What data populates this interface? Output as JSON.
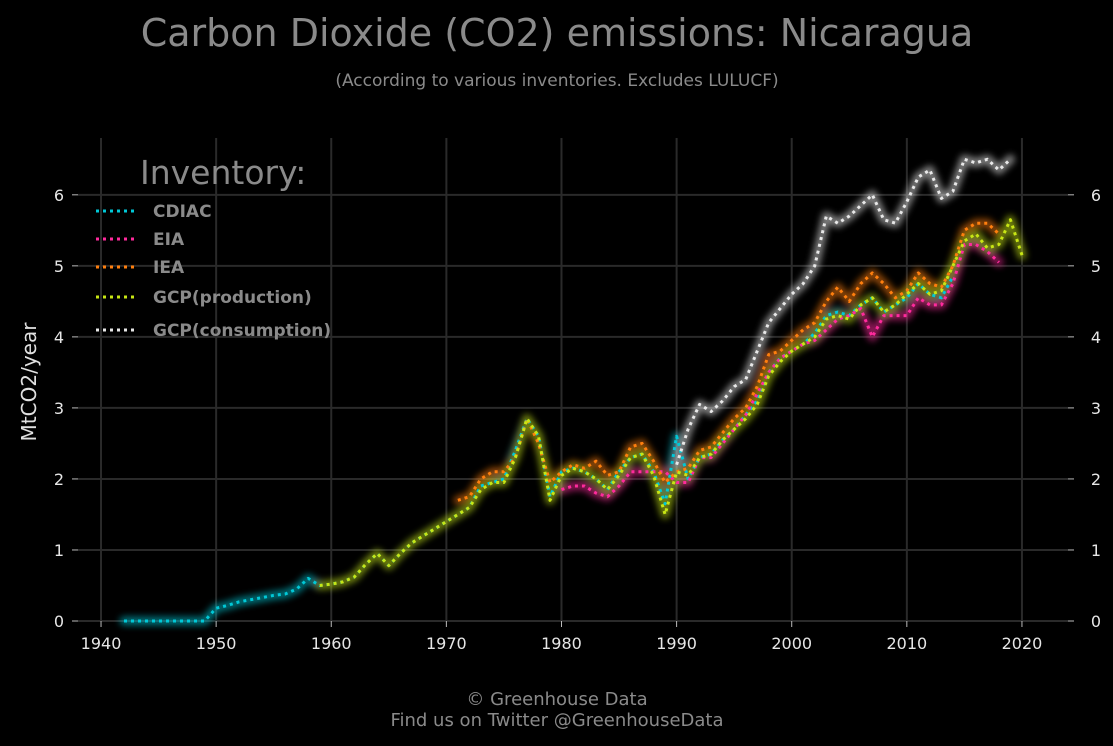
{
  "chart_data": {
    "type": "line",
    "title": "Carbon Dioxide (CO2) emissions: Nicaragua",
    "subtitle": "(According to various inventories. Excludes LULUCF)",
    "ylabel": "MtCO2/year",
    "xlabel": "",
    "xlim": [
      1938,
      2024
    ],
    "ylim": [
      0,
      6.8
    ],
    "x_ticks": [
      1940,
      1950,
      1960,
      1970,
      1980,
      1990,
      2000,
      2010,
      2020
    ],
    "y_ticks": [
      0,
      1,
      2,
      3,
      4,
      5,
      6
    ],
    "grid": true,
    "legend_title": "Inventory:",
    "legend_position": "top-left",
    "series": [
      {
        "name": "CDIAC",
        "color": "#00c8d7",
        "x": [
          1942,
          1943,
          1944,
          1945,
          1946,
          1947,
          1948,
          1949,
          1950,
          1951,
          1952,
          1953,
          1954,
          1955,
          1956,
          1957,
          1958,
          1959,
          1960,
          1961,
          1962,
          1963,
          1964,
          1965,
          1966,
          1967,
          1968,
          1969,
          1970,
          1971,
          1972,
          1973,
          1974,
          1975,
          1976,
          1977,
          1978,
          1979,
          1980,
          1981,
          1982,
          1983,
          1984,
          1985,
          1986,
          1987,
          1988,
          1989,
          1990,
          1991,
          1992,
          1993,
          1994,
          1995,
          1996,
          1997,
          1998,
          1999,
          2000,
          2001,
          2002,
          2003,
          2004,
          2005,
          2006,
          2007,
          2008,
          2009,
          2010,
          2011,
          2012,
          2013,
          2014
        ],
        "y": [
          0,
          0,
          0,
          0,
          0,
          0,
          0,
          0,
          0.18,
          0.22,
          0.27,
          0.3,
          0.33,
          0.36,
          0.38,
          0.45,
          0.6,
          0.5,
          0.52,
          0.55,
          0.62,
          0.8,
          0.95,
          0.78,
          0.95,
          1.1,
          1.2,
          1.3,
          1.4,
          1.5,
          1.6,
          1.9,
          1.95,
          2.0,
          2.4,
          2.85,
          2.6,
          1.75,
          2.1,
          2.15,
          2.1,
          2.0,
          1.85,
          2.1,
          2.3,
          2.35,
          2.1,
          1.65,
          2.6,
          2.0,
          2.3,
          2.35,
          2.55,
          2.7,
          2.9,
          3.1,
          3.5,
          3.7,
          3.8,
          3.9,
          4.05,
          4.3,
          4.35,
          4.3,
          4.45,
          4.55,
          4.35,
          4.45,
          4.55,
          4.75,
          4.6,
          4.55,
          4.85
        ]
      },
      {
        "name": "EIA",
        "color": "#ff2a9d",
        "x": [
          1980,
          1981,
          1982,
          1983,
          1984,
          1985,
          1986,
          1987,
          1988,
          1989,
          1990,
          1991,
          1992,
          1993,
          1994,
          1995,
          1996,
          1997,
          1998,
          1999,
          2000,
          2001,
          2002,
          2003,
          2004,
          2005,
          2006,
          2007,
          2008,
          2009,
          2010,
          2011,
          2012,
          2013,
          2014,
          2015,
          2016,
          2017,
          2018
        ],
        "y": [
          1.85,
          1.9,
          1.9,
          1.8,
          1.75,
          1.9,
          2.1,
          2.1,
          2.1,
          2.1,
          1.95,
          1.95,
          2.3,
          2.3,
          2.5,
          2.7,
          2.9,
          3.2,
          3.5,
          3.7,
          3.8,
          3.9,
          3.95,
          4.1,
          4.25,
          4.3,
          4.4,
          4.0,
          4.3,
          4.3,
          4.3,
          4.55,
          4.45,
          4.45,
          4.75,
          5.3,
          5.3,
          5.2,
          5.05
        ]
      },
      {
        "name": "IEA",
        "color": "#ff7f0e",
        "x": [
          1971,
          1972,
          1973,
          1974,
          1975,
          1976,
          1977,
          1978,
          1979,
          1980,
          1981,
          1982,
          1983,
          1984,
          1985,
          1986,
          1987,
          1988,
          1989,
          1990,
          1991,
          1992,
          1993,
          1994,
          1995,
          1996,
          1997,
          1998,
          1999,
          2000,
          2001,
          2002,
          2003,
          2004,
          2005,
          2006,
          2007,
          2008,
          2009,
          2010,
          2011,
          2012,
          2013,
          2014,
          2015,
          2016,
          2017,
          2018
        ],
        "y": [
          1.7,
          1.75,
          2.0,
          2.1,
          2.1,
          2.3,
          2.85,
          2.5,
          1.95,
          2.1,
          2.2,
          2.15,
          2.25,
          2.05,
          2.1,
          2.45,
          2.5,
          2.25,
          1.95,
          2.1,
          2.15,
          2.4,
          2.45,
          2.65,
          2.85,
          3.0,
          3.3,
          3.75,
          3.8,
          3.95,
          4.1,
          4.2,
          4.5,
          4.7,
          4.5,
          4.75,
          4.9,
          4.75,
          4.55,
          4.65,
          4.9,
          4.75,
          4.7,
          5.0,
          5.5,
          5.6,
          5.6,
          5.45
        ]
      },
      {
        "name": "GCP(production)",
        "color": "#c8e614",
        "x": [
          1959,
          1960,
          1961,
          1962,
          1963,
          1964,
          1965,
          1966,
          1967,
          1968,
          1969,
          1970,
          1971,
          1972,
          1973,
          1974,
          1975,
          1976,
          1977,
          1978,
          1979,
          1980,
          1981,
          1982,
          1983,
          1984,
          1985,
          1986,
          1987,
          1988,
          1989,
          1990,
          1991,
          1992,
          1993,
          1994,
          1995,
          1996,
          1997,
          1998,
          1999,
          2000,
          2001,
          2002,
          2003,
          2004,
          2005,
          2006,
          2007,
          2008,
          2009,
          2010,
          2011,
          2012,
          2013,
          2014,
          2015,
          2016,
          2017,
          2018,
          2019,
          2020
        ],
        "y": [
          0.5,
          0.52,
          0.55,
          0.62,
          0.8,
          0.95,
          0.78,
          0.95,
          1.1,
          1.2,
          1.3,
          1.4,
          1.5,
          1.6,
          1.85,
          1.95,
          1.95,
          2.3,
          2.85,
          2.6,
          1.7,
          2.05,
          2.15,
          2.1,
          2.0,
          1.85,
          2.05,
          2.3,
          2.35,
          2.05,
          1.5,
          2.1,
          2.05,
          2.3,
          2.35,
          2.55,
          2.7,
          2.85,
          3.05,
          3.45,
          3.65,
          3.8,
          3.9,
          4.0,
          4.25,
          4.3,
          4.25,
          4.45,
          4.55,
          4.35,
          4.45,
          4.6,
          4.75,
          4.6,
          4.65,
          5.0,
          5.35,
          5.45,
          5.25,
          5.3,
          5.65,
          5.15
        ]
      },
      {
        "name": "GCP(consumption)",
        "color": "#e8e8e8",
        "x": [
          1990,
          1991,
          1992,
          1993,
          1994,
          1995,
          1996,
          1997,
          1998,
          1999,
          2000,
          2001,
          2002,
          2003,
          2004,
          2005,
          2006,
          2007,
          2008,
          2009,
          2010,
          2011,
          2012,
          2013,
          2014,
          2015,
          2016,
          2017,
          2018,
          2019
        ],
        "y": [
          2.2,
          2.7,
          3.05,
          2.95,
          3.1,
          3.3,
          3.4,
          3.8,
          4.2,
          4.4,
          4.6,
          4.75,
          5.0,
          5.7,
          5.6,
          5.7,
          5.85,
          6.0,
          5.65,
          5.6,
          5.9,
          6.25,
          6.35,
          5.95,
          6.05,
          6.5,
          6.45,
          6.5,
          6.35,
          6.5
        ]
      }
    ]
  },
  "footer": {
    "line1": "© Greenhouse Data",
    "line2": "Find us on Twitter @GreenhouseData"
  }
}
